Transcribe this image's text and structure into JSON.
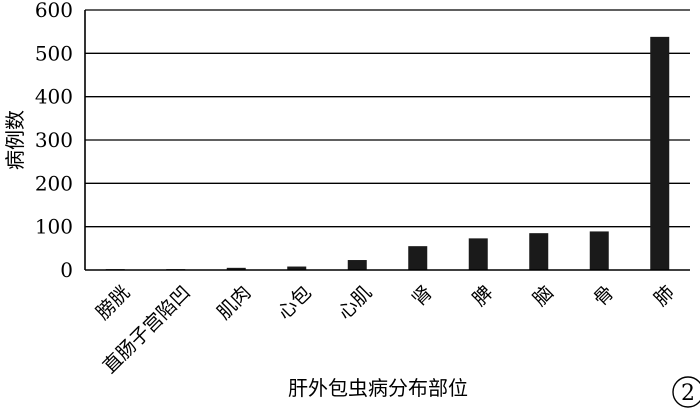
{
  "chart_data": {
    "type": "bar",
    "categories": [
      "膀胱",
      "直肠子宫陷凹",
      "肌肉",
      "心包",
      "心肌",
      "肾",
      "脾",
      "脑",
      "骨",
      "肺"
    ],
    "values": [
      2,
      2,
      5,
      8,
      23,
      55,
      73,
      85,
      89,
      538
    ],
    "xlabel": "肝外包虫病分布部位",
    "ylabel": "病例数",
    "ylim": [
      0,
      600
    ],
    "yticks": [
      0,
      100,
      200,
      300,
      400,
      500,
      600
    ],
    "grid": true,
    "bar_color": "#1a1a1a",
    "panel_label": "2"
  }
}
